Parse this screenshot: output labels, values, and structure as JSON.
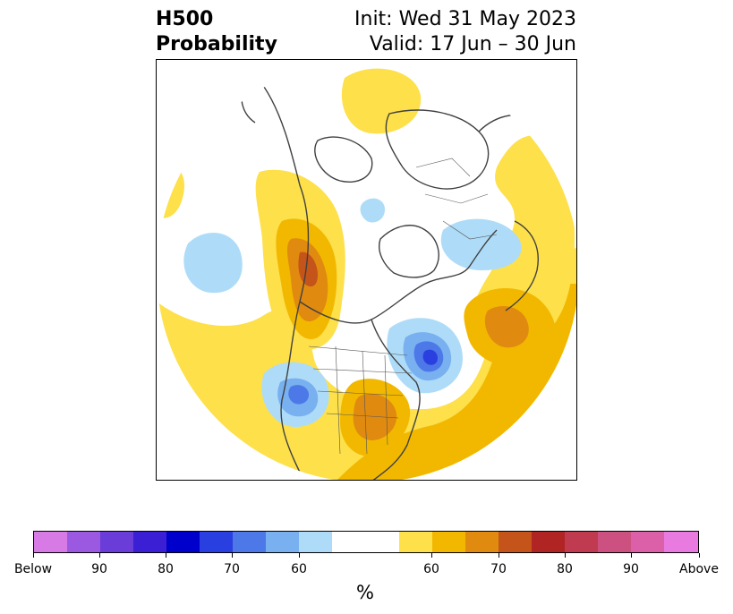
{
  "title": {
    "variable": "H500",
    "product": "Probability",
    "init": "Init: Wed 31 May 2023",
    "valid": "Valid: 17 Jun – 30 Jun"
  },
  "colorbar": {
    "unit": "%",
    "labels": [
      "Below",
      "90",
      "80",
      "70",
      "60",
      "60",
      "70",
      "80",
      "90",
      "Above"
    ],
    "colors": [
      "#d87ae6",
      "#9b58e0",
      "#6a3cd8",
      "#3a1fd4",
      "#0000cc",
      "#2a3fe0",
      "#4d78e8",
      "#78b0f0",
      "#aedcf8",
      "#ffffff",
      "#fde04a",
      "#f2b800",
      "#e08a10",
      "#c4541a",
      "#b02424",
      "#c03a50",
      "#cc5080",
      "#dc60a8",
      "#e87ae0"
    ]
  },
  "map": {
    "projection": "north polar stereographic",
    "anomaly_colors": {
      "above_60": "#fde04a",
      "above_65": "#f2b800",
      "above_70": "#e08a10",
      "above_75": "#c4541a",
      "below_60": "#aedcf8",
      "below_65": "#78b0f0",
      "below_70": "#4d78e8",
      "below_75": "#2a3fe0"
    }
  }
}
